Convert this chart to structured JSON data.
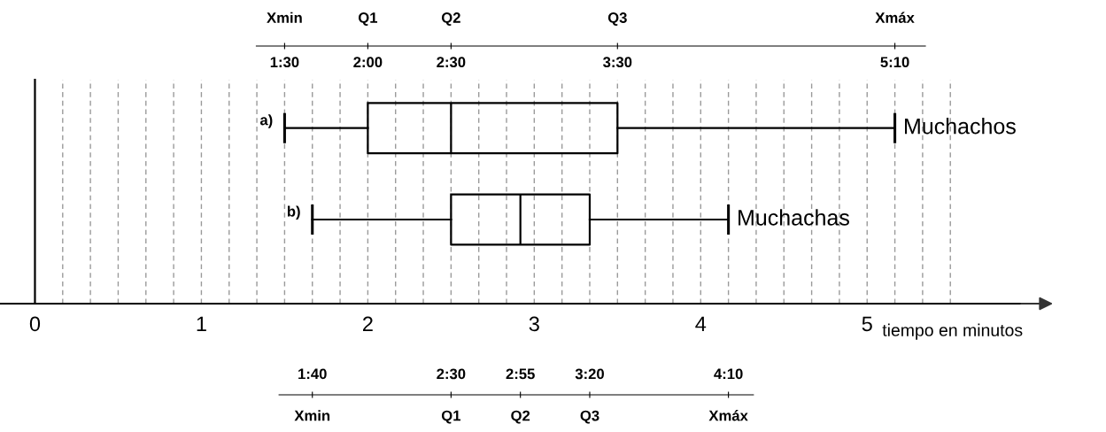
{
  "chart_data": [
    {
      "type": "box",
      "orientation": "horizontal",
      "xlabel": "tiempo en minutos",
      "categories": [
        "a)",
        "b)"
      ],
      "series": [
        {
          "name": "Muchachos",
          "color": "#000000",
          "boxes": [
            {
              "low": 1.5,
              "q1": 2,
              "median": 2.5,
              "q3": 3.5,
              "high": 5.1667
            },
            null
          ]
        },
        {
          "name": "Muchachas",
          "color": "#000000",
          "boxes": [
            null,
            {
              "low": 1.6667,
              "q1": 2.5,
              "median": 2.9167,
              "q3": 3.3333,
              "high": 4.1667
            }
          ]
        }
      ],
      "xlim": [
        -0.21,
        6.1
      ],
      "xticks": [
        0,
        {
          "value": 0.1667,
          "label": null
        },
        {
          "value": 0.3333,
          "label": null
        },
        {
          "value": 0.5,
          "label": null
        },
        {
          "value": 0.6667,
          "label": null
        },
        {
          "value": 0.8333,
          "label": null
        },
        1,
        {
          "value": 1.1667,
          "label": null
        },
        {
          "value": 1.3333,
          "label": null
        },
        {
          "value": 1.5,
          "label": null
        },
        {
          "value": 1.6667,
          "label": null
        },
        {
          "value": 1.8333,
          "label": null
        },
        2,
        {
          "value": 2.1667,
          "label": null
        },
        {
          "value": 2.3333,
          "label": null
        },
        {
          "value": 2.5,
          "label": null
        },
        {
          "value": 2.6667,
          "label": null
        },
        {
          "value": 2.8333,
          "label": null
        },
        3,
        {
          "value": 3.1667,
          "label": null
        },
        {
          "value": 3.3333,
          "label": null
        },
        {
          "value": 3.5,
          "label": null
        },
        {
          "value": 3.6667,
          "label": null
        },
        {
          "value": 3.8333,
          "label": null
        },
        4,
        {
          "value": 4.1667,
          "label": null
        },
        {
          "value": 4.3333,
          "label": null
        },
        {
          "value": 4.5,
          "label": null
        },
        {
          "value": 4.6667,
          "label": null
        },
        {
          "value": 4.8333,
          "label": null
        },
        5,
        {
          "value": 5.1667,
          "label": null
        },
        {
          "value": 5.3333,
          "label": null
        },
        {
          "value": 5.5,
          "label": null
        }
      ],
      "grid": "x",
      "x2lim": [
        1.33,
        5.35
      ],
      "x2ticks": [
        {
          "value": 1.5,
          "label": "1:30"
        },
        {
          "value": 2,
          "label": "2:00"
        },
        {
          "value": 2.5,
          "label": "2:30"
        },
        {
          "value": 3.5,
          "label": "3:30"
        },
        {
          "value": 5.1667,
          "label": "5:10"
        }
      ],
      "annotations": [
        "Xmin",
        "Q1",
        "Q2",
        "Q3",
        "Xmáx"
      ]
    },
    {
      "type": "other",
      "annotations": [
        "1:40",
        "2:30",
        "2:55",
        "3:20",
        "4:10",
        "Xmin",
        "Q1",
        "Q2",
        "Q3",
        "Xmáx"
      ]
    }
  ]
}
